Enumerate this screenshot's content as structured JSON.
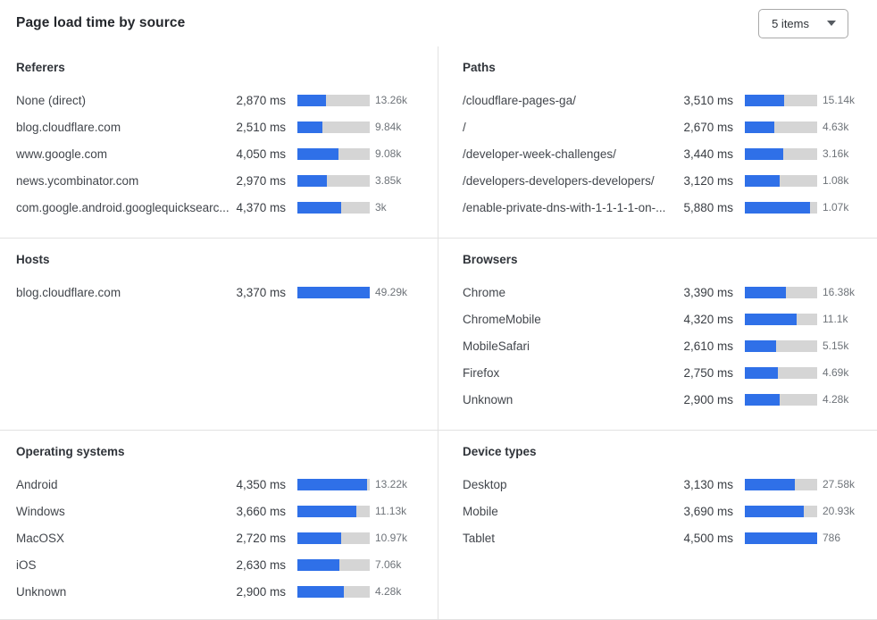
{
  "header": {
    "title": "Page load time by source",
    "dropdown": {
      "value": "5 items",
      "icon": "chevron-down-icon"
    }
  },
  "colors": {
    "bar_fill": "#2f70e8",
    "bar_track": "#d5d5d5",
    "divider": "#e2e2e2"
  },
  "panels": [
    {
      "key": "referers",
      "title": "Referers",
      "scale_max_ms": 7200,
      "rows": [
        {
          "label": "None (direct)",
          "time": "2,870 ms",
          "ms": 2870,
          "count": "13.26k"
        },
        {
          "label": "blog.cloudflare.com",
          "time": "2,510 ms",
          "ms": 2510,
          "count": "9.84k"
        },
        {
          "label": "www.google.com",
          "time": "4,050 ms",
          "ms": 4050,
          "count": "9.08k"
        },
        {
          "label": "news.ycombinator.com",
          "time": "2,970 ms",
          "ms": 2970,
          "count": "3.85k"
        },
        {
          "label": "com.google.android.googlequicksearc...",
          "time": "4,370 ms",
          "ms": 4370,
          "count": "3k"
        }
      ]
    },
    {
      "key": "paths",
      "title": "Paths",
      "scale_max_ms": 6500,
      "rows": [
        {
          "label": "/cloudflare-pages-ga/",
          "time": "3,510 ms",
          "ms": 3510,
          "count": "15.14k"
        },
        {
          "label": "/",
          "time": "2,670 ms",
          "ms": 2670,
          "count": "4.63k"
        },
        {
          "label": "/developer-week-challenges/",
          "time": "3,440 ms",
          "ms": 3440,
          "count": "3.16k"
        },
        {
          "label": "/developers-developers-developers/",
          "time": "3,120 ms",
          "ms": 3120,
          "count": "1.08k"
        },
        {
          "label": "/enable-private-dns-with-1-1-1-1-on-...",
          "time": "5,880 ms",
          "ms": 5880,
          "count": "1.07k"
        }
      ]
    },
    {
      "key": "hosts",
      "title": "Hosts",
      "scale_max_ms": 3370,
      "rows": [
        {
          "label": "blog.cloudflare.com",
          "time": "3,370 ms",
          "ms": 3370,
          "count": "49.29k"
        }
      ]
    },
    {
      "key": "browsers",
      "title": "Browsers",
      "scale_max_ms": 6000,
      "rows": [
        {
          "label": "Chrome",
          "time": "3,390 ms",
          "ms": 3390,
          "count": "16.38k"
        },
        {
          "label": "ChromeMobile",
          "time": "4,320 ms",
          "ms": 4320,
          "count": "11.1k"
        },
        {
          "label": "MobileSafari",
          "time": "2,610 ms",
          "ms": 2610,
          "count": "5.15k"
        },
        {
          "label": "Firefox",
          "time": "2,750 ms",
          "ms": 2750,
          "count": "4.69k"
        },
        {
          "label": "Unknown",
          "time": "2,900 ms",
          "ms": 2900,
          "count": "4.28k"
        }
      ]
    },
    {
      "key": "operating-systems",
      "title": "Operating systems",
      "scale_max_ms": 4500,
      "rows": [
        {
          "label": "Android",
          "time": "4,350 ms",
          "ms": 4350,
          "count": "13.22k"
        },
        {
          "label": "Windows",
          "time": "3,660 ms",
          "ms": 3660,
          "count": "11.13k"
        },
        {
          "label": "MacOSX",
          "time": "2,720 ms",
          "ms": 2720,
          "count": "10.97k"
        },
        {
          "label": "iOS",
          "time": "2,630 ms",
          "ms": 2630,
          "count": "7.06k"
        },
        {
          "label": "Unknown",
          "time": "2,900 ms",
          "ms": 2900,
          "count": "4.28k"
        }
      ]
    },
    {
      "key": "device-types",
      "title": "Device types",
      "scale_max_ms": 4500,
      "rows": [
        {
          "label": "Desktop",
          "time": "3,130 ms",
          "ms": 3130,
          "count": "27.58k"
        },
        {
          "label": "Mobile",
          "time": "3,690 ms",
          "ms": 3690,
          "count": "20.93k"
        },
        {
          "label": "Tablet",
          "time": "4,500 ms",
          "ms": 4500,
          "count": "786"
        }
      ]
    }
  ]
}
